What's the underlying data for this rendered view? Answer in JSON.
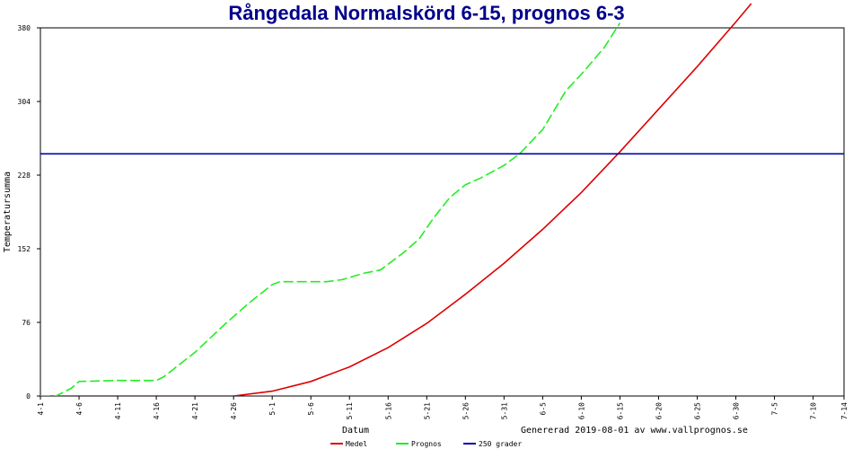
{
  "chart_data": {
    "type": "line",
    "title": "Rångedala Normalskörd 6-15, prognos 6-3",
    "title_color": "#00008B",
    "xlabel": "Datum",
    "ylabel": "Temperatursumma",
    "footer": "Genererad 2019-08-01 av www.vallprognos.se",
    "ylim": [
      0,
      380
    ],
    "yticks": [
      0,
      76,
      152,
      228,
      304,
      380
    ],
    "xlim": [
      "4-1",
      "7-14"
    ],
    "xticks": [
      "4-1",
      "4-6",
      "4-11",
      "4-16",
      "4-21",
      "4-26",
      "5-1",
      "5-6",
      "5-11",
      "5-16",
      "5-21",
      "5-26",
      "5-31",
      "6-5",
      "6-10",
      "6-15",
      "6-20",
      "6-25",
      "6-30",
      "7-5",
      "7-10",
      "7-14"
    ],
    "grid": false,
    "legend_position": "bottom",
    "series": [
      {
        "name": "Medel",
        "color": "#DD0000",
        "style": "solid",
        "points": [
          [
            "4-1",
            0
          ],
          [
            "4-26",
            0
          ],
          [
            "5-1",
            5
          ],
          [
            "5-6",
            15
          ],
          [
            "5-11",
            30
          ],
          [
            "5-16",
            50
          ],
          [
            "5-21",
            75
          ],
          [
            "5-26",
            105
          ],
          [
            "5-31",
            137
          ],
          [
            "6-5",
            172
          ],
          [
            "6-10",
            210
          ],
          [
            "6-15",
            252
          ],
          [
            "6-20",
            296
          ],
          [
            "6-25",
            340
          ],
          [
            "6-30",
            386
          ],
          [
            "7-2",
            405
          ]
        ]
      },
      {
        "name": "Prognos",
        "color": "#22EE22",
        "style": "dashed",
        "points": [
          [
            "4-1",
            0
          ],
          [
            "4-3",
            0
          ],
          [
            "4-5",
            8
          ],
          [
            "4-6",
            15
          ],
          [
            "4-11",
            16
          ],
          [
            "4-16",
            16
          ],
          [
            "4-17",
            20
          ],
          [
            "4-21",
            45
          ],
          [
            "4-25",
            75
          ],
          [
            "4-28",
            96
          ],
          [
            "5-1",
            115
          ],
          [
            "5-2",
            118
          ],
          [
            "5-6",
            118
          ],
          [
            "5-8",
            118
          ],
          [
            "5-10",
            120
          ],
          [
            "5-13",
            127
          ],
          [
            "5-15",
            130
          ],
          [
            "5-18",
            148
          ],
          [
            "5-20",
            162
          ],
          [
            "5-22",
            185
          ],
          [
            "5-24",
            205
          ],
          [
            "5-26",
            218
          ],
          [
            "5-28",
            225
          ],
          [
            "5-31",
            238
          ],
          [
            "6-2",
            250
          ],
          [
            "6-5",
            275
          ],
          [
            "6-8",
            315
          ],
          [
            "6-10",
            332
          ],
          [
            "6-13",
            360
          ],
          [
            "6-15",
            385
          ]
        ]
      },
      {
        "name": "250 grader",
        "color": "#0000AA",
        "style": "solid",
        "points": [
          [
            "4-1",
            250
          ],
          [
            "7-14",
            250
          ]
        ]
      }
    ]
  }
}
